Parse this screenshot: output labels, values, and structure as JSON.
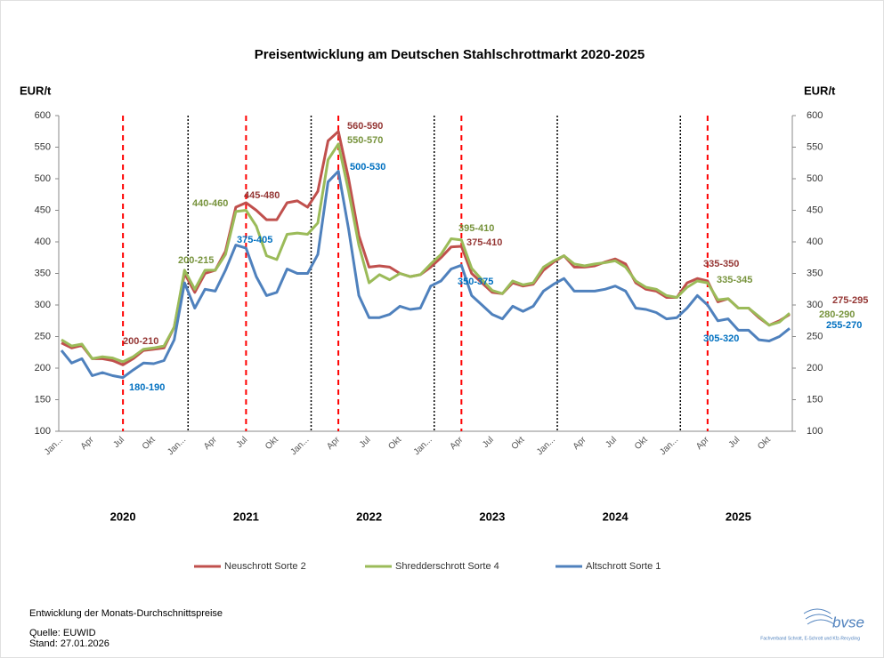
{
  "chart_data": {
    "type": "line",
    "title": "Preisentwicklung am Deutschen Stahlschrottmarkt 2020-2025",
    "y_label": "EUR/t",
    "y2_label": "EUR/t",
    "categories": [
      "Jan...",
      null,
      null,
      "Apr",
      null,
      null,
      "Jul",
      null,
      null,
      "Okt",
      null,
      null,
      "Jan...",
      null,
      null,
      "Apr",
      null,
      null,
      "Jul",
      null,
      null,
      "Okt",
      null,
      null,
      "Jan...",
      null,
      null,
      "Apr",
      null,
      null,
      "Jul",
      null,
      null,
      "Okt",
      null,
      null,
      "Jan...",
      null,
      null,
      "Apr",
      null,
      null,
      "Jul",
      null,
      null,
      "Okt",
      null,
      null,
      "Jan...",
      null,
      null,
      "Apr",
      null,
      null,
      "Jul",
      null,
      null,
      "Okt",
      null,
      null,
      "Jan...",
      null,
      null,
      "Apr",
      null,
      null,
      "Jul",
      null,
      null,
      "Okt",
      null,
      null
    ],
    "year_labels": [
      "2020",
      "2021",
      "2022",
      "2023",
      "2024",
      "2025"
    ],
    "ylim": [
      100,
      600
    ],
    "yticks": [
      100,
      150,
      200,
      250,
      300,
      350,
      400,
      450,
      500,
      550,
      600
    ],
    "y2lim": [
      100,
      600
    ],
    "y2ticks": [
      100,
      150,
      200,
      250,
      300,
      350,
      400,
      450,
      500,
      550,
      600
    ],
    "grid": false,
    "series": [
      {
        "name": "Neuschrott Sorte 2",
        "color": "#c0504d",
        "values": [
          240,
          232,
          236,
          215,
          215,
          212,
          205,
          215,
          228,
          230,
          232,
          265,
          350,
          320,
          350,
          355,
          385,
          455,
          462,
          450,
          435,
          435,
          462,
          465,
          455,
          480,
          560,
          575,
          500,
          410,
          360,
          362,
          360,
          350,
          345,
          348,
          360,
          375,
          392,
          393,
          350,
          335,
          320,
          318,
          335,
          330,
          333,
          355,
          368,
          378,
          360,
          360,
          362,
          368,
          373,
          365,
          335,
          325,
          322,
          312,
          312,
          335,
          342,
          338,
          305,
          310,
          295,
          295,
          280,
          268,
          275,
          285
        ]
      },
      {
        "name": "Shredderschrott Sorte 4",
        "color": "#9bbb59",
        "values": [
          245,
          235,
          238,
          215,
          218,
          216,
          210,
          218,
          230,
          232,
          235,
          265,
          355,
          325,
          355,
          355,
          380,
          448,
          450,
          425,
          378,
          372,
          412,
          414,
          412,
          430,
          530,
          555,
          480,
          395,
          335,
          348,
          340,
          350,
          345,
          348,
          365,
          380,
          405,
          403,
          358,
          340,
          323,
          318,
          338,
          332,
          335,
          360,
          370,
          378,
          365,
          362,
          365,
          367,
          370,
          360,
          338,
          328,
          325,
          315,
          312,
          328,
          338,
          335,
          308,
          310,
          295,
          295,
          282,
          268,
          273,
          287
        ]
      },
      {
        "name": "Altschrott Sorte 1",
        "color": "#4f81bd",
        "values": [
          228,
          208,
          215,
          188,
          193,
          188,
          185,
          197,
          208,
          207,
          212,
          245,
          335,
          295,
          325,
          322,
          355,
          395,
          390,
          345,
          315,
          320,
          357,
          350,
          350,
          380,
          495,
          512,
          420,
          315,
          280,
          280,
          285,
          298,
          293,
          295,
          330,
          338,
          357,
          363,
          315,
          300,
          285,
          278,
          298,
          290,
          298,
          322,
          333,
          342,
          322,
          322,
          322,
          325,
          330,
          322,
          295,
          293,
          288,
          278,
          280,
          295,
          315,
          300,
          275,
          278,
          260,
          260,
          245,
          243,
          250,
          263
        ]
      }
    ],
    "annotations": [
      {
        "text": "200-215",
        "color": "#77933c"
      },
      {
        "text": "200-210",
        "color": "#953735"
      },
      {
        "text": "180-190",
        "color": "#0070c0"
      },
      {
        "text": "440-460",
        "color": "#77933c"
      },
      {
        "text": "445-480",
        "color": "#953735"
      },
      {
        "text": "375-405",
        "color": "#0070c0"
      },
      {
        "text": "560-590",
        "color": "#953735"
      },
      {
        "text": "550-570",
        "color": "#77933c"
      },
      {
        "text": "500-530",
        "color": "#0070c0"
      },
      {
        "text": "395-410",
        "color": "#77933c"
      },
      {
        "text": "375-410",
        "color": "#953735"
      },
      {
        "text": "350-375",
        "color": "#0070c0"
      },
      {
        "text": "335-350",
        "color": "#953735"
      },
      {
        "text": "335-345",
        "color": "#77933c"
      },
      {
        "text": "305-320",
        "color": "#0070c0"
      },
      {
        "text": "275-295",
        "color": "#953735"
      },
      {
        "text": "280-290",
        "color": "#77933c"
      },
      {
        "text": "255-270",
        "color": "#0070c0"
      }
    ],
    "footnotes": [
      "Entwicklung der Monats-Durchschnittspreise",
      "Quelle: EUWID",
      "Stand: 27.01.2026"
    ],
    "logo": "bvse",
    "logo_tagline": "Fachverband Schrott, E-Schrott und Kfz-Recycling"
  }
}
